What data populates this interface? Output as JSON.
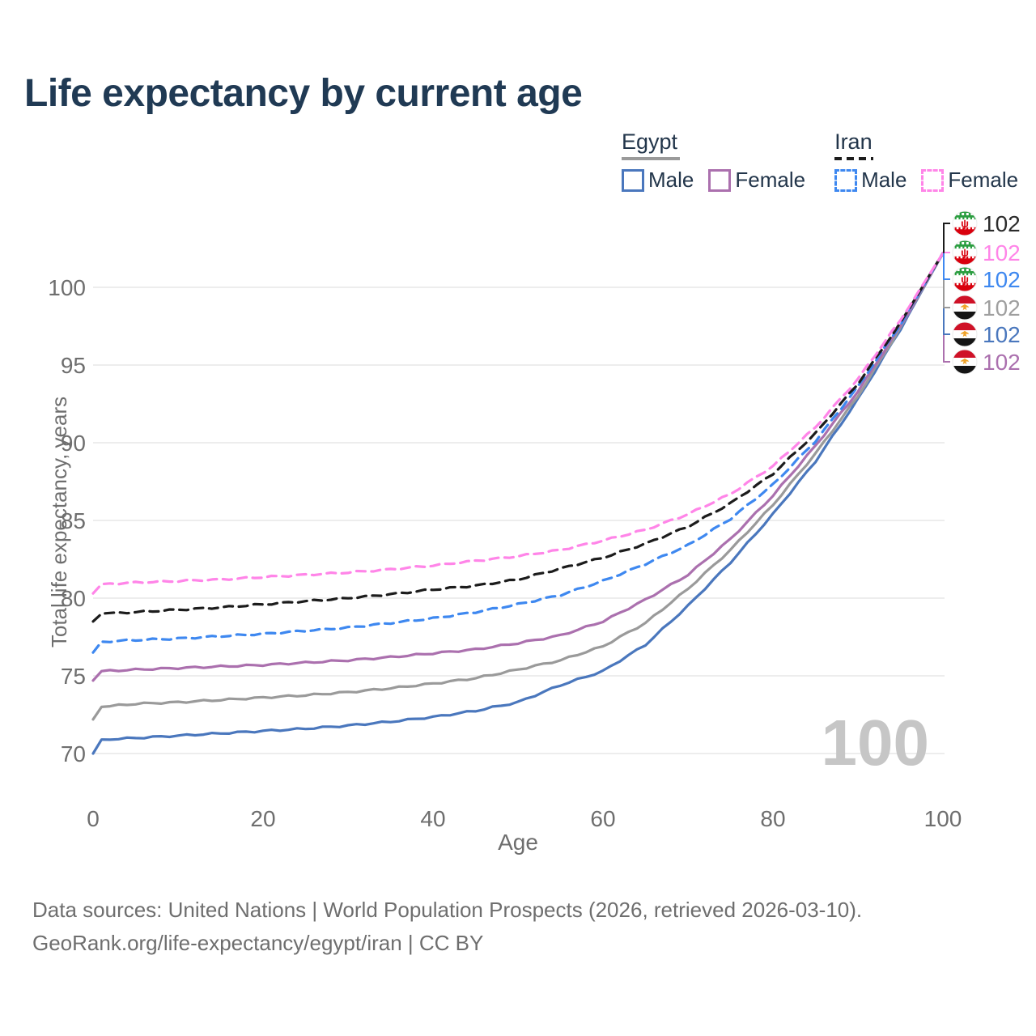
{
  "title": "Life expectancy by current age",
  "watermark": "100",
  "colors": {
    "title_text": "#203a54",
    "legend_text": "#22354a",
    "axis_text": "#6e6e6e",
    "grid": "#ededed",
    "watermark": "#c6c6c6",
    "footer_text": "#6e6e6e"
  },
  "legend": {
    "groups": [
      {
        "label": "Egypt",
        "line_style": "solid",
        "underline_color": "#9a9a9a",
        "items": [
          {
            "label": "Male",
            "color": "#4a77bd"
          },
          {
            "label": "Female",
            "color": "#ab70ae"
          }
        ]
      },
      {
        "label": "Iran",
        "line_style": "dashed",
        "underline_color": "#1c1c1c",
        "items": [
          {
            "label": "Male",
            "color": "#3e88f0"
          },
          {
            "label": "Female",
            "color": "#ff85e8"
          }
        ]
      }
    ]
  },
  "footer": {
    "line1": "Data sources: United Nations | World Population Prospects (2026, retrieved 2026-03-10).",
    "line2": "GeoRank.org/life-expectancy/egypt/iran | CC BY"
  },
  "flags": {
    "iran": {
      "icon_name": "iran-flag-icon",
      "green": "#2a9d3f",
      "white": "#ffffff",
      "red": "#d9000d",
      "emblem_glyph": "ψ"
    },
    "egypt": {
      "icon_name": "egypt-flag-icon",
      "red": "#cf1127",
      "white": "#ffffff",
      "black": "#141414",
      "eagle_gold": "#efa32a"
    }
  },
  "chart_data": {
    "type": "line",
    "title": "Life expectancy by current age",
    "xlabel": "Age",
    "ylabel": "Total life expectancy, years",
    "xlim": [
      0,
      100
    ],
    "ylim": [
      68.8,
      103.3
    ],
    "xticks": [
      0,
      20,
      40,
      60,
      80,
      100
    ],
    "yticks": [
      70,
      75,
      80,
      85,
      90,
      95,
      100
    ],
    "grid": "horizontal-only",
    "legend_position": "top-right",
    "x": [
      0,
      1,
      5,
      10,
      15,
      20,
      25,
      30,
      35,
      40,
      45,
      50,
      55,
      60,
      65,
      70,
      75,
      80,
      85,
      90,
      95,
      100
    ],
    "series": [
      {
        "key": "egypt-male",
        "country": "Egypt",
        "sex": "Male",
        "color": "#4a77bd",
        "dash": false,
        "end_label": "102",
        "end_label_color": "#4a77bd",
        "values": [
          70.0,
          70.9,
          71.0,
          71.15,
          71.3,
          71.45,
          71.6,
          71.8,
          72.05,
          72.35,
          72.75,
          73.3,
          74.4,
          75.3,
          77.0,
          79.5,
          82.3,
          85.4,
          88.8,
          92.8,
          97.3,
          102.2
        ]
      },
      {
        "key": "egypt-all",
        "country": "Egypt",
        "sex": "Both sexes",
        "color": "#9a9a9a",
        "dash": false,
        "end_label": "102",
        "end_label_color": "#9f9f9f",
        "values": [
          72.2,
          73.0,
          73.2,
          73.3,
          73.45,
          73.6,
          73.75,
          73.95,
          74.2,
          74.5,
          74.85,
          75.4,
          76.0,
          76.9,
          78.4,
          80.6,
          83.1,
          86.0,
          89.3,
          93.0,
          97.4,
          102.2
        ]
      },
      {
        "key": "egypt-female",
        "country": "Egypt",
        "sex": "Female",
        "color": "#ab70ae",
        "dash": false,
        "end_label": "102",
        "end_label_color": "#ab70ae",
        "values": [
          74.7,
          75.3,
          75.4,
          75.5,
          75.6,
          75.7,
          75.85,
          76.0,
          76.2,
          76.45,
          76.7,
          77.1,
          77.6,
          78.5,
          79.9,
          81.5,
          83.8,
          86.6,
          89.8,
          93.3,
          97.5,
          102.2
        ]
      },
      {
        "key": "iran-male",
        "country": "Iran",
        "sex": "Male",
        "color": "#3e88f0",
        "dash": true,
        "end_label": "102",
        "end_label_color": "#3e88f0",
        "values": [
          76.5,
          77.2,
          77.3,
          77.4,
          77.55,
          77.7,
          77.9,
          78.1,
          78.4,
          78.7,
          79.1,
          79.6,
          80.2,
          81.1,
          82.2,
          83.4,
          85.1,
          87.3,
          90.1,
          93.6,
          97.6,
          102.2
        ]
      },
      {
        "key": "iran-all",
        "country": "Iran",
        "sex": "Both sexes",
        "color": "#1c1c1c",
        "dash": true,
        "end_label": "102",
        "end_label_color": "#2b2b2b",
        "values": [
          78.5,
          79.0,
          79.1,
          79.25,
          79.4,
          79.6,
          79.8,
          80.0,
          80.25,
          80.55,
          80.8,
          81.2,
          81.9,
          82.6,
          83.5,
          84.6,
          86.1,
          88.0,
          90.6,
          93.8,
          97.7,
          102.2
        ]
      },
      {
        "key": "iran-female",
        "country": "Iran",
        "sex": "Female",
        "color": "#ff85e8",
        "dash": true,
        "end_label": "102",
        "end_label_color": "#ff85e8",
        "values": [
          80.3,
          80.9,
          81.0,
          81.1,
          81.2,
          81.35,
          81.5,
          81.65,
          81.85,
          82.1,
          82.4,
          82.7,
          83.1,
          83.7,
          84.4,
          85.4,
          86.7,
          88.5,
          91.0,
          94.1,
          97.9,
          102.2
        ]
      }
    ],
    "end_label_order_top_to_bottom": [
      "iran-all",
      "iran-female",
      "iran-male",
      "egypt-all",
      "egypt-male",
      "egypt-female"
    ]
  }
}
